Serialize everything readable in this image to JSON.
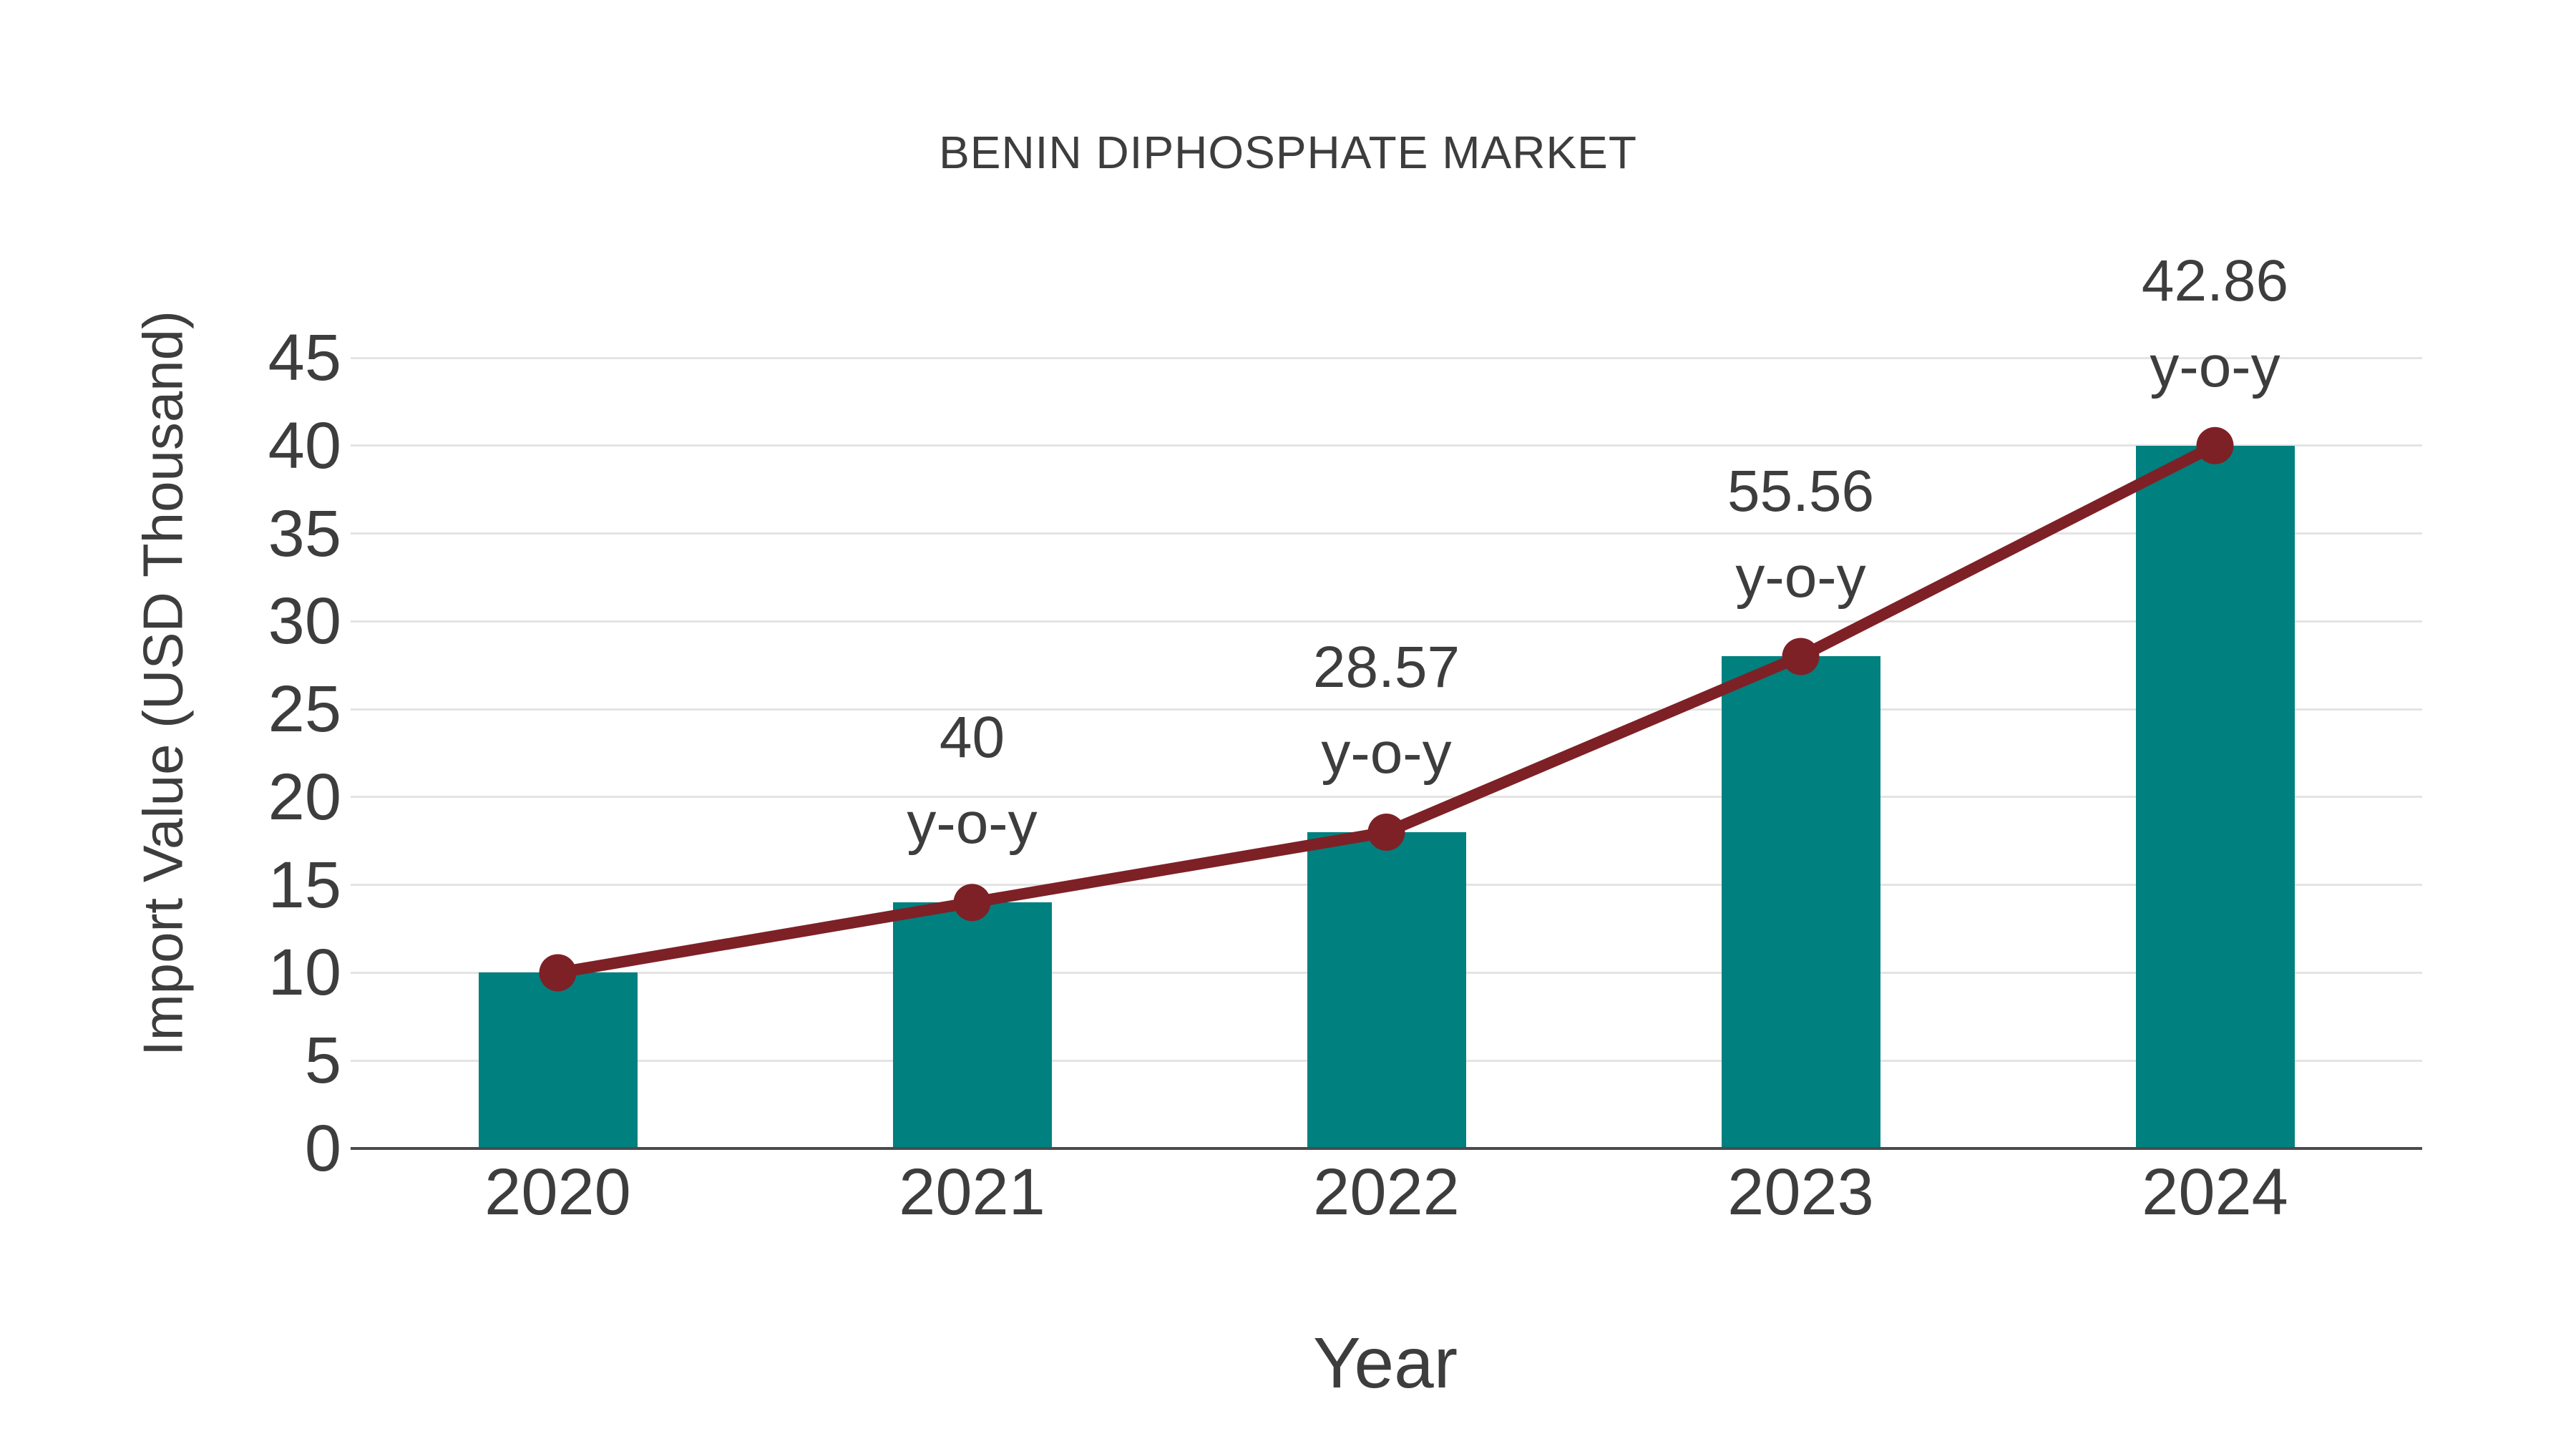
{
  "chart_data": {
    "type": "bar",
    "title": "BENIN DIPHOSPHATE MARKET",
    "xlabel": "Year",
    "ylabel": "Import Value (USD Thousand)",
    "categories": [
      "2020",
      "2021",
      "2022",
      "2023",
      "2024"
    ],
    "series": [
      {
        "name": "Import Value bars",
        "type": "bar",
        "values": [
          10,
          14,
          18,
          28,
          40
        ]
      },
      {
        "name": "Import Value trend line",
        "type": "line",
        "values": [
          10,
          14,
          18,
          28,
          40
        ]
      }
    ],
    "annotations": {
      "growth_labels": [
        "",
        "40",
        "28.57",
        "55.56",
        "42.86"
      ],
      "suffix": "y-o-y"
    },
    "ylim": [
      0,
      45
    ],
    "yticks": [
      0,
      5,
      10,
      15,
      20,
      25,
      30,
      35,
      40,
      45
    ],
    "grid": true,
    "legend_position": "none",
    "colors": {
      "bar": "#00807e",
      "line": "#7d2127",
      "text": "#3d3d3d",
      "grid": "#e4e4e4",
      "axis": "#4b4b4b",
      "background": "#ffffff"
    }
  }
}
